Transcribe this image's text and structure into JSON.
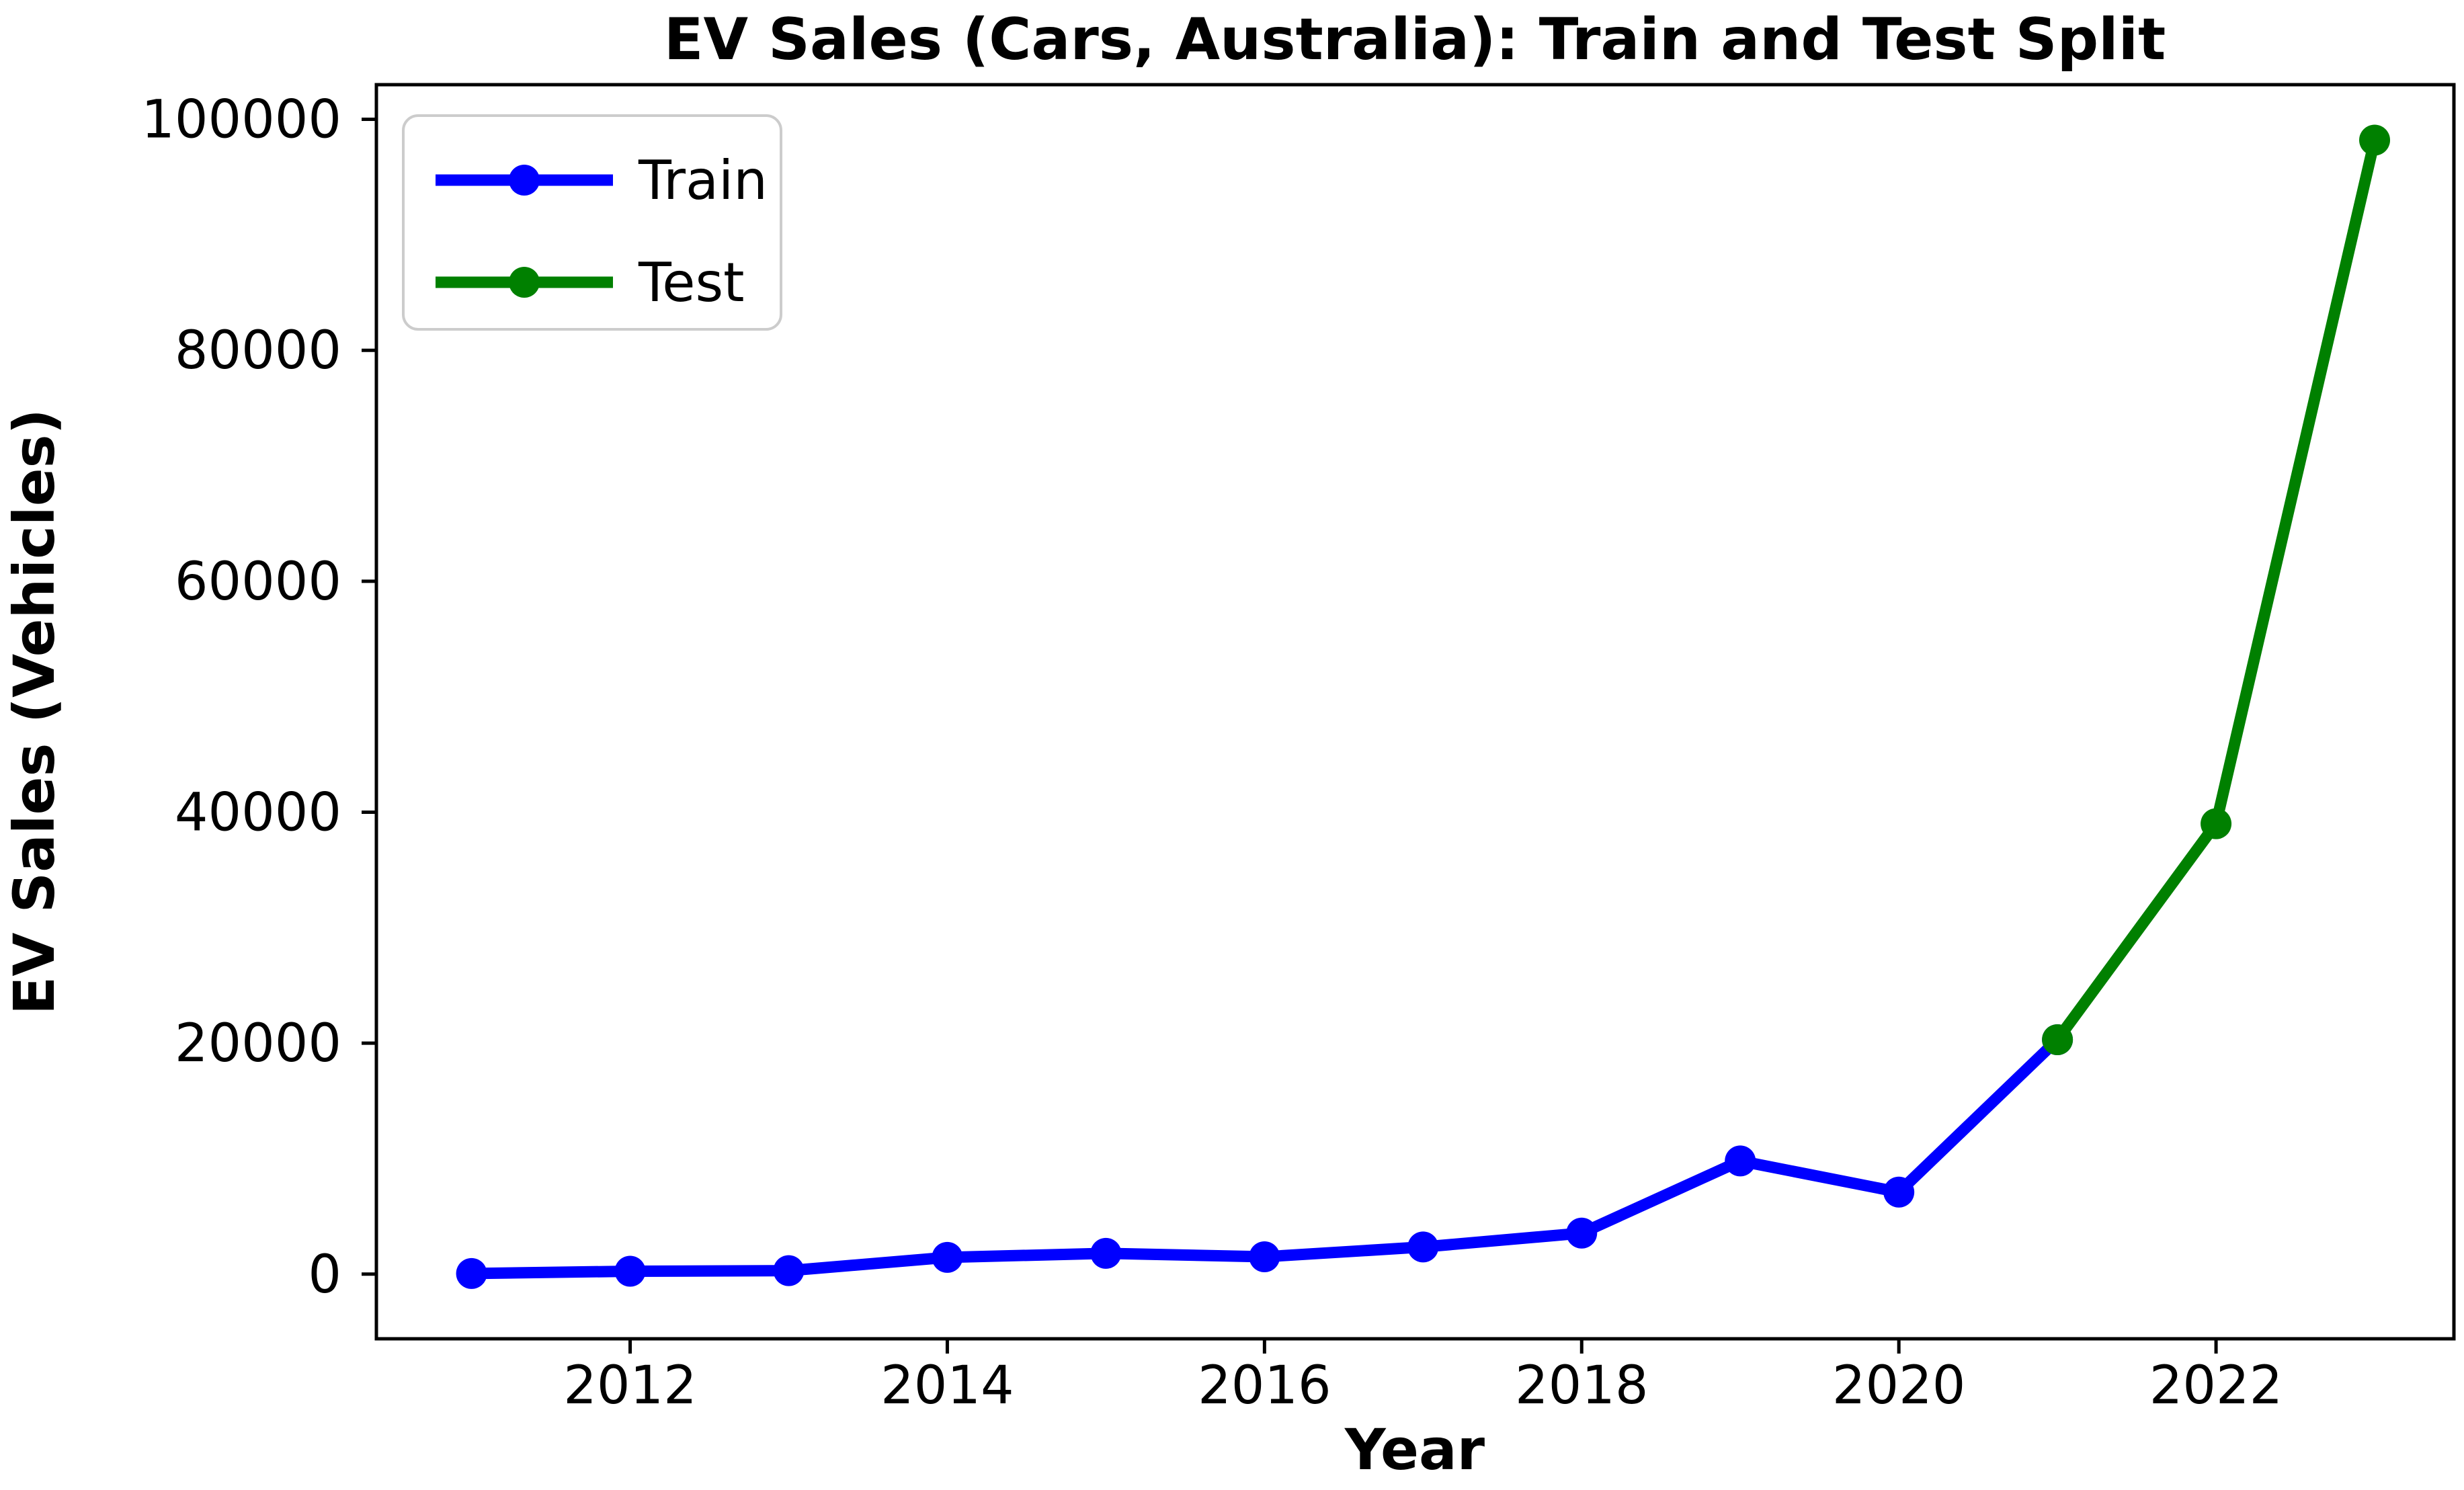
{
  "chart_data": {
    "type": "line",
    "title": "EV Sales (Cars, Australia): Train and Test Split",
    "xlabel": "Year",
    "ylabel": "EV Sales (Vehicles)",
    "xlim": [
      2010.4,
      2023.5
    ],
    "ylim": [
      -5600,
      103000
    ],
    "grid": false,
    "legend_position": "upper left",
    "x_ticks": [
      {
        "value": 2012,
        "label": "2012"
      },
      {
        "value": 2014,
        "label": "2014"
      },
      {
        "value": 2016,
        "label": "2016"
      },
      {
        "value": 2018,
        "label": "2018"
      },
      {
        "value": 2020,
        "label": "2020"
      },
      {
        "value": 2022,
        "label": "2022"
      }
    ],
    "y_ticks": [
      {
        "value": 0,
        "label": "0"
      },
      {
        "value": 20000,
        "label": "20000"
      },
      {
        "value": 40000,
        "label": "40000"
      },
      {
        "value": 60000,
        "label": "60000"
      },
      {
        "value": 80000,
        "label": "80000"
      },
      {
        "value": 100000,
        "label": "100000"
      }
    ],
    "series": [
      {
        "name": "Train",
        "color": "#0000ff",
        "x": [
          2011,
          2012,
          2013,
          2014,
          2015,
          2016,
          2017,
          2018,
          2019,
          2020,
          2021
        ],
        "values": [
          50,
          250,
          300,
          1450,
          1800,
          1500,
          2350,
          3550,
          9800,
          7100,
          20300
        ]
      },
      {
        "name": "Test",
        "color": "#008000",
        "x": [
          2021,
          2022,
          2023
        ],
        "values": [
          20300,
          39000,
          98200
        ]
      }
    ]
  }
}
